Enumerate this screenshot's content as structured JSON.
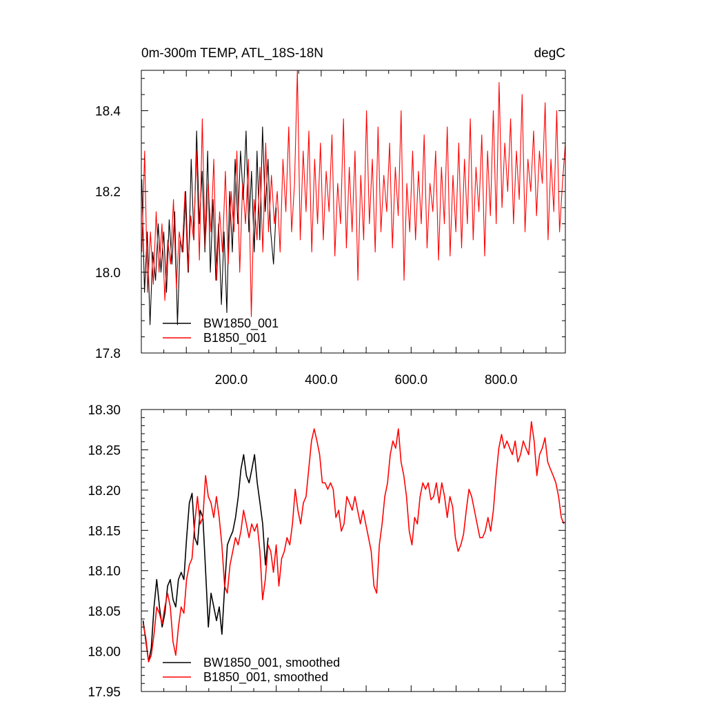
{
  "chart_data": [
    {
      "type": "line",
      "title": "0m-300m TEMP, ATL_18S-18N",
      "units_label": "degC",
      "xlabel": "",
      "ylabel": "",
      "xlim": [
        0,
        943
      ],
      "ylim": [
        17.8,
        18.5
      ],
      "xticks": [
        200,
        400,
        600,
        800
      ],
      "xtick_labels": [
        "200.0",
        "400.0",
        "600.0",
        "800.0"
      ],
      "yticks": [
        17.8,
        18.0,
        18.2,
        18.4
      ],
      "ytick_labels": [
        "17.8",
        "18.0",
        "18.2",
        "18.4"
      ],
      "grid": false,
      "legend_position": "bottom-left",
      "series": [
        {
          "name": "BW1850_001",
          "color": "#000000",
          "x_range": [
            1,
            300
          ],
          "values": [
            18.23,
            17.95,
            18.1,
            17.87,
            18.05,
            17.98,
            18.12,
            18.0,
            18.1,
            17.95,
            18.13,
            18.02,
            18.15,
            17.87,
            18.08,
            18.05,
            18.2,
            18.0,
            18.28,
            18.08,
            18.35,
            18.12,
            18.25,
            18.05,
            18.3,
            18.0,
            18.18,
            17.98,
            18.12,
            17.92,
            18.1,
            17.9,
            18.2,
            18.05,
            18.28,
            18.12,
            18.3,
            18.18,
            18.35,
            18.1,
            18.25,
            18.05,
            18.3,
            18.08,
            18.36,
            18.15,
            18.28,
            18.1,
            18.02,
            18.16
          ]
        },
        {
          "name": "B1850_001",
          "color": "#ff0000",
          "x_range": [
            1,
            943
          ],
          "values": [
            18.05,
            18.3,
            17.95,
            18.1,
            17.97,
            18.15,
            18.0,
            18.12,
            17.93,
            18.08,
            18.02,
            18.18,
            17.96,
            18.1,
            18.05,
            18.2,
            18.0,
            18.14,
            18.08,
            18.3,
            18.03,
            18.38,
            18.06,
            18.22,
            18.1,
            18.28,
            17.98,
            18.15,
            18.05,
            18.25,
            18.02,
            18.2,
            18.1,
            18.3,
            18.0,
            18.22,
            18.12,
            18.28,
            17.89,
            18.18,
            18.08,
            18.26,
            18.05,
            18.32,
            18.1,
            18.24,
            18.12,
            18.2,
            18.05,
            18.28,
            18.15,
            18.36,
            18.1,
            18.22,
            18.5,
            18.08,
            18.3,
            18.15,
            18.35,
            18.05,
            18.28,
            18.12,
            18.32,
            18.08,
            18.25,
            18.15,
            18.34,
            18.04,
            18.22,
            18.12,
            18.38,
            18.06,
            18.26,
            18.1,
            18.3,
            17.98,
            18.24,
            18.08,
            18.4,
            18.12,
            18.28,
            18.05,
            18.36,
            18.1,
            18.24,
            18.15,
            18.32,
            18.06,
            18.26,
            18.14,
            18.4,
            17.98,
            18.22,
            18.1,
            18.3,
            18.08,
            18.25,
            18.12,
            18.34,
            18.06,
            18.22,
            18.15,
            18.3,
            18.03,
            18.26,
            18.12,
            18.36,
            18.04,
            18.24,
            18.1,
            18.32,
            18.06,
            18.28,
            18.12,
            18.38,
            18.08,
            18.26,
            18.15,
            18.34,
            18.04,
            18.3,
            18.14,
            18.4,
            18.12,
            18.47,
            18.16,
            18.32,
            18.2,
            18.38,
            18.12,
            18.3,
            18.18,
            18.44,
            18.1,
            18.28,
            18.2,
            18.35,
            18.14,
            18.3,
            18.22,
            18.42,
            18.08,
            18.28,
            18.15,
            18.4,
            18.1,
            18.22,
            18.32
          ]
        }
      ]
    },
    {
      "type": "line",
      "title": "",
      "xlabel": "",
      "ylabel": "",
      "xlim": [
        0,
        943
      ],
      "ylim": [
        17.95,
        18.3
      ],
      "yticks": [
        17.95,
        18.0,
        18.05,
        18.1,
        18.15,
        18.2,
        18.25,
        18.3
      ],
      "ytick_labels": [
        "17.95",
        "18.00",
        "18.05",
        "18.10",
        "18.15",
        "18.20",
        "18.25",
        "18.30"
      ],
      "grid": false,
      "legend_position": "bottom-left",
      "series": [
        {
          "name": "BW1850_001, smoothed",
          "color": "#000000",
          "x_range": [
            4,
            282
          ],
          "values": [
            18.038,
            18.012,
            17.987,
            18.004,
            18.055,
            18.089,
            18.055,
            18.03,
            18.047,
            18.081,
            18.089,
            18.064,
            18.055,
            18.089,
            18.098,
            18.089,
            18.141,
            18.184,
            18.196,
            18.141,
            18.132,
            18.175,
            18.166,
            18.098,
            18.03,
            18.072,
            18.055,
            18.038,
            18.055,
            18.021,
            18.081,
            18.132,
            18.141,
            18.149,
            18.166,
            18.192,
            18.226,
            18.244,
            18.218,
            18.209,
            18.226,
            18.244,
            18.209,
            18.184,
            18.158,
            18.107,
            18.141
          ]
        },
        {
          "name": "B1850_001, smoothed",
          "color": "#ff0000",
          "x_range": [
            4,
            940
          ],
          "values": [
            18.034,
            18.017,
            17.987,
            17.995,
            18.021,
            18.055,
            18.047,
            18.034,
            18.055,
            18.072,
            18.055,
            18.012,
            17.995,
            18.03,
            18.055,
            18.047,
            18.089,
            18.107,
            18.115,
            18.158,
            18.192,
            18.158,
            18.166,
            18.218,
            18.192,
            18.184,
            18.166,
            18.192,
            18.166,
            18.132,
            18.081,
            18.072,
            18.107,
            18.124,
            18.141,
            18.132,
            18.149,
            18.175,
            18.158,
            18.141,
            18.158,
            18.149,
            18.158,
            18.124,
            18.064,
            18.089,
            18.132,
            18.124,
            18.098,
            18.132,
            18.081,
            18.115,
            18.124,
            18.141,
            18.132,
            18.158,
            18.201,
            18.175,
            18.158,
            18.184,
            18.192,
            18.226,
            18.261,
            18.276,
            18.261,
            18.244,
            18.209,
            18.209,
            18.201,
            18.209,
            18.201,
            18.166,
            18.175,
            18.149,
            18.158,
            18.192,
            18.184,
            18.175,
            18.192,
            18.175,
            18.158,
            18.175,
            18.158,
            18.141,
            18.124,
            18.081,
            18.072,
            18.132,
            18.158,
            18.192,
            18.209,
            18.244,
            18.261,
            18.252,
            18.276,
            18.235,
            18.218,
            18.192,
            18.149,
            18.132,
            18.166,
            18.158,
            18.192,
            18.209,
            18.201,
            18.209,
            18.188,
            18.192,
            18.209,
            18.184,
            18.209,
            18.192,
            18.166,
            18.192,
            18.179,
            18.141,
            18.124,
            18.132,
            18.145,
            18.175,
            18.201,
            18.192,
            18.175,
            18.158,
            18.141,
            18.141,
            18.149,
            18.166,
            18.149,
            18.175,
            18.218,
            18.252,
            18.269,
            18.252,
            18.261,
            18.252,
            18.244,
            18.261,
            18.235,
            18.244,
            18.261,
            18.252,
            18.244,
            18.285,
            18.261,
            18.218,
            18.244,
            18.252,
            18.265,
            18.235,
            18.226,
            18.218,
            18.209,
            18.192,
            18.166,
            18.158
          ]
        }
      ]
    }
  ]
}
